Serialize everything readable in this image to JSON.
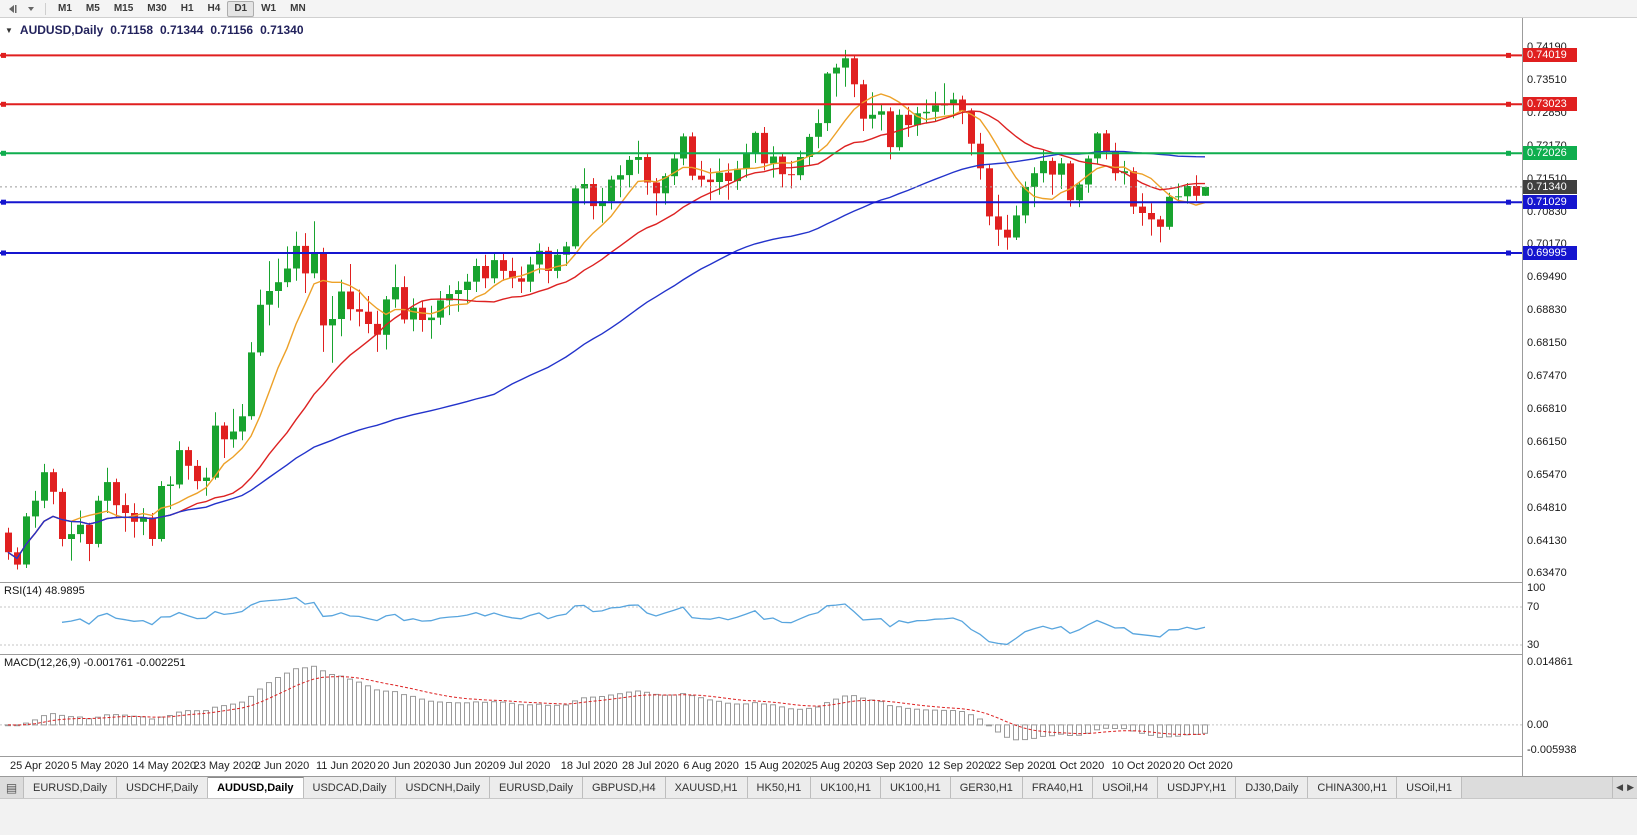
{
  "toolbar": {
    "timeframes": [
      "M1",
      "M5",
      "M15",
      "M30",
      "H1",
      "H4",
      "D1",
      "W1",
      "MN"
    ],
    "active_timeframe": "D1",
    "icons": [
      "chart-shift-icon",
      "dropdown-caret-icon"
    ]
  },
  "chart": {
    "title": "AUDUSD,Daily",
    "ohlc": {
      "open": "0.71158",
      "high": "0.71344",
      "low": "0.71156",
      "close": "0.71340"
    },
    "price_axis_labels": [
      "0.74190",
      "0.73510",
      "0.72850",
      "0.72170",
      "0.71510",
      "0.70830",
      "0.70170",
      "0.69490",
      "0.68830",
      "0.68150",
      "0.67470",
      "0.66810",
      "0.66150",
      "0.65470",
      "0.64810",
      "0.64130",
      "0.63470"
    ],
    "current_price": {
      "value": 0.7134,
      "label": "0.71340",
      "tag_bg": "#3f3f3f"
    },
    "hlines": [
      {
        "price": 0.74019,
        "label": "0.74019",
        "color": "#e01f1f"
      },
      {
        "price": 0.73023,
        "label": "0.73023",
        "color": "#e01f1f"
      },
      {
        "price": 0.72026,
        "label": "0.72026",
        "color": "#0fae4e"
      },
      {
        "price": 0.71029,
        "label": "0.71029",
        "color": "#1515cf"
      },
      {
        "price": 0.69995,
        "label": "0.69995",
        "color": "#1515cf"
      }
    ],
    "colors": {
      "bull": "#18a32f",
      "bear": "#e02020",
      "ma_fast": "#eda128",
      "ma_mid": "#dd2222",
      "ma_slow": "#2333cb",
      "rsi": "#58a5de",
      "macd_hist": "#9a9a9a",
      "macd_signal": "#dd2222",
      "level_dash": "#c4c4c4",
      "bid_line": "#9b9b9b"
    }
  },
  "chart_data": {
    "type": "candlestick",
    "symbol": "AUDUSD",
    "timeframe": "Daily",
    "ylim": [
      0.6347,
      0.7419
    ],
    "x_date_labels": [
      "25 Apr 2020",
      "5 May 2020",
      "14 May 2020",
      "23 May 2020",
      "2 Jun 2020",
      "11 Jun 2020",
      "20 Jun 2020",
      "30 Jun 2020",
      "9 Jul 2020",
      "18 Jul 2020",
      "28 Jul 2020",
      "6 Aug 2020",
      "15 Aug 2020",
      "25 Aug 2020",
      "3 Sep 2020",
      "12 Sep 2020",
      "22 Sep 2020",
      "1 Oct 2020",
      "10 Oct 2020",
      "20 Oct 2020"
    ],
    "moving_averages": [
      {
        "period": 8,
        "color_key": "ma_fast"
      },
      {
        "period": 20,
        "color_key": "ma_mid"
      },
      {
        "period": 55,
        "color_key": "ma_slow"
      }
    ],
    "candles": [
      [
        0.643,
        0.644,
        0.6375,
        0.639
      ],
      [
        0.639,
        0.64,
        0.6355,
        0.6365
      ],
      [
        0.6365,
        0.647,
        0.6358,
        0.6463
      ],
      [
        0.6463,
        0.6515,
        0.644,
        0.6495
      ],
      [
        0.6495,
        0.657,
        0.648,
        0.6553
      ],
      [
        0.6553,
        0.656,
        0.6488,
        0.6513
      ],
      [
        0.6513,
        0.652,
        0.6402,
        0.6417
      ],
      [
        0.6417,
        0.6453,
        0.6373,
        0.6427
      ],
      [
        0.6427,
        0.6475,
        0.641,
        0.6446
      ],
      [
        0.6446,
        0.645,
        0.6372,
        0.6407
      ],
      [
        0.6407,
        0.6505,
        0.64,
        0.6495
      ],
      [
        0.6495,
        0.6562,
        0.647,
        0.6533
      ],
      [
        0.6533,
        0.654,
        0.646,
        0.6486
      ],
      [
        0.6486,
        0.651,
        0.6432,
        0.647
      ],
      [
        0.647,
        0.649,
        0.642,
        0.6452
      ],
      [
        0.6452,
        0.648,
        0.6425,
        0.6461
      ],
      [
        0.6461,
        0.647,
        0.6403,
        0.6417
      ],
      [
        0.6417,
        0.6535,
        0.6412,
        0.6525
      ],
      [
        0.6525,
        0.6545,
        0.6478,
        0.6528
      ],
      [
        0.6528,
        0.6616,
        0.652,
        0.6598
      ],
      [
        0.6598,
        0.6605,
        0.6538,
        0.6566
      ],
      [
        0.6566,
        0.6578,
        0.6518,
        0.6535
      ],
      [
        0.6535,
        0.6562,
        0.6505,
        0.6542
      ],
      [
        0.6542,
        0.6675,
        0.6538,
        0.6648
      ],
      [
        0.6648,
        0.6655,
        0.6582,
        0.662
      ],
      [
        0.662,
        0.6682,
        0.6603,
        0.6636
      ],
      [
        0.6636,
        0.6692,
        0.6618,
        0.6667
      ],
      [
        0.6667,
        0.6818,
        0.666,
        0.6797
      ],
      [
        0.6797,
        0.6925,
        0.679,
        0.6894
      ],
      [
        0.6894,
        0.6983,
        0.6852,
        0.6922
      ],
      [
        0.6922,
        0.6988,
        0.6888,
        0.694
      ],
      [
        0.694,
        0.7013,
        0.693,
        0.6968
      ],
      [
        0.6968,
        0.7043,
        0.6943,
        0.7014
      ],
      [
        0.7014,
        0.704,
        0.6918,
        0.6958
      ],
      [
        0.6958,
        0.7064,
        0.6948,
        0.7
      ],
      [
        0.7,
        0.701,
        0.6798,
        0.6852
      ],
      [
        0.6852,
        0.6912,
        0.6776,
        0.6865
      ],
      [
        0.6865,
        0.6945,
        0.683,
        0.6921
      ],
      [
        0.6921,
        0.6977,
        0.6862,
        0.6885
      ],
      [
        0.6885,
        0.6925,
        0.685,
        0.688
      ],
      [
        0.688,
        0.6912,
        0.6836,
        0.6855
      ],
      [
        0.6855,
        0.6882,
        0.6798,
        0.6833
      ],
      [
        0.6833,
        0.6912,
        0.6803,
        0.6905
      ],
      [
        0.6905,
        0.6976,
        0.6888,
        0.693
      ],
      [
        0.693,
        0.6952,
        0.6856,
        0.6864
      ],
      [
        0.6864,
        0.6907,
        0.684,
        0.6888
      ],
      [
        0.6888,
        0.6902,
        0.6839,
        0.6863
      ],
      [
        0.6863,
        0.6892,
        0.6825,
        0.6868
      ],
      [
        0.6868,
        0.6922,
        0.6853,
        0.6903
      ],
      [
        0.6903,
        0.6934,
        0.6873,
        0.6916
      ],
      [
        0.6916,
        0.6942,
        0.688,
        0.6924
      ],
      [
        0.6924,
        0.6957,
        0.6898,
        0.6941
      ],
      [
        0.6941,
        0.6988,
        0.692,
        0.6973
      ],
      [
        0.6973,
        0.6996,
        0.6928,
        0.6948
      ],
      [
        0.6948,
        0.6998,
        0.6938,
        0.6985
      ],
      [
        0.6985,
        0.7001,
        0.6943,
        0.6963
      ],
      [
        0.6963,
        0.699,
        0.6928,
        0.6948
      ],
      [
        0.6948,
        0.6972,
        0.6918,
        0.6941
      ],
      [
        0.6941,
        0.6992,
        0.692,
        0.6976
      ],
      [
        0.6976,
        0.7019,
        0.6958,
        0.7004
      ],
      [
        0.7004,
        0.7012,
        0.6938,
        0.6963
      ],
      [
        0.6963,
        0.7007,
        0.6948,
        0.6996
      ],
      [
        0.6996,
        0.7022,
        0.6973,
        0.7013
      ],
      [
        0.7013,
        0.7137,
        0.7008,
        0.7131
      ],
      [
        0.7131,
        0.7172,
        0.7098,
        0.714
      ],
      [
        0.714,
        0.7152,
        0.7068,
        0.7095
      ],
      [
        0.7095,
        0.7132,
        0.7061,
        0.7105
      ],
      [
        0.7105,
        0.7157,
        0.7088,
        0.7149
      ],
      [
        0.7149,
        0.7178,
        0.7113,
        0.7158
      ],
      [
        0.7158,
        0.7197,
        0.7133,
        0.7189
      ],
      [
        0.7189,
        0.7228,
        0.7161,
        0.7195
      ],
      [
        0.7195,
        0.7202,
        0.7118,
        0.7143
      ],
      [
        0.7143,
        0.7152,
        0.7076,
        0.7121
      ],
      [
        0.7121,
        0.7162,
        0.7098,
        0.7156
      ],
      [
        0.7156,
        0.7202,
        0.7138,
        0.7192
      ],
      [
        0.7192,
        0.7243,
        0.7178,
        0.7237
      ],
      [
        0.7237,
        0.7245,
        0.7148,
        0.7157
      ],
      [
        0.7157,
        0.7187,
        0.7133,
        0.7149
      ],
      [
        0.7149,
        0.7172,
        0.7107,
        0.7144
      ],
      [
        0.7144,
        0.7192,
        0.7118,
        0.7163
      ],
      [
        0.7163,
        0.7182,
        0.7108,
        0.7146
      ],
      [
        0.7146,
        0.7187,
        0.7128,
        0.7171
      ],
      [
        0.7171,
        0.7222,
        0.7153,
        0.7204
      ],
      [
        0.7204,
        0.7247,
        0.7183,
        0.7244
      ],
      [
        0.7244,
        0.7256,
        0.7168,
        0.7182
      ],
      [
        0.7182,
        0.7217,
        0.7153,
        0.7196
      ],
      [
        0.7196,
        0.7202,
        0.7133,
        0.716
      ],
      [
        0.716,
        0.7187,
        0.7131,
        0.7158
      ],
      [
        0.7158,
        0.7208,
        0.7148,
        0.7195
      ],
      [
        0.7195,
        0.7242,
        0.7178,
        0.7236
      ],
      [
        0.7236,
        0.7292,
        0.7213,
        0.7264
      ],
      [
        0.7264,
        0.7368,
        0.7248,
        0.7365
      ],
      [
        0.7365,
        0.7385,
        0.7318,
        0.7377
      ],
      [
        0.7377,
        0.7413,
        0.7338,
        0.7396
      ],
      [
        0.7396,
        0.7403,
        0.7317,
        0.7343
      ],
      [
        0.7343,
        0.7352,
        0.7248,
        0.7273
      ],
      [
        0.7273,
        0.7327,
        0.7253,
        0.7281
      ],
      [
        0.7281,
        0.7302,
        0.7249,
        0.7288
      ],
      [
        0.7288,
        0.7296,
        0.719,
        0.7215
      ],
      [
        0.7215,
        0.7292,
        0.7208,
        0.7281
      ],
      [
        0.7281,
        0.7297,
        0.7236,
        0.726
      ],
      [
        0.726,
        0.7297,
        0.7238,
        0.7284
      ],
      [
        0.7284,
        0.7312,
        0.7263,
        0.7287
      ],
      [
        0.7287,
        0.7328,
        0.7268,
        0.73
      ],
      [
        0.73,
        0.7345,
        0.7281,
        0.7304
      ],
      [
        0.7304,
        0.7326,
        0.7274,
        0.7312
      ],
      [
        0.7312,
        0.732,
        0.7262,
        0.7289
      ],
      [
        0.7289,
        0.7294,
        0.7198,
        0.7222
      ],
      [
        0.7222,
        0.7244,
        0.7149,
        0.7172
      ],
      [
        0.7172,
        0.7179,
        0.7056,
        0.7074
      ],
      [
        0.7074,
        0.7118,
        0.7014,
        0.7047
      ],
      [
        0.7047,
        0.7077,
        0.7006,
        0.7031
      ],
      [
        0.7031,
        0.7096,
        0.7026,
        0.7076
      ],
      [
        0.7076,
        0.7145,
        0.706,
        0.7134
      ],
      [
        0.7134,
        0.7174,
        0.7093,
        0.7162
      ],
      [
        0.7162,
        0.7209,
        0.7143,
        0.7187
      ],
      [
        0.7187,
        0.7194,
        0.7118,
        0.7159
      ],
      [
        0.7159,
        0.7193,
        0.713,
        0.7182
      ],
      [
        0.7182,
        0.7187,
        0.7094,
        0.7107
      ],
      [
        0.7107,
        0.7145,
        0.7093,
        0.7139
      ],
      [
        0.7139,
        0.7198,
        0.7122,
        0.7192
      ],
      [
        0.7192,
        0.7246,
        0.7181,
        0.7243
      ],
      [
        0.7243,
        0.725,
        0.719,
        0.7206
      ],
      [
        0.7206,
        0.7224,
        0.7147,
        0.7162
      ],
      [
        0.7162,
        0.7187,
        0.7139,
        0.7166
      ],
      [
        0.7166,
        0.7174,
        0.7079,
        0.7094
      ],
      [
        0.7094,
        0.7121,
        0.7055,
        0.7081
      ],
      [
        0.7081,
        0.7101,
        0.7035,
        0.7068
      ],
      [
        0.7068,
        0.7075,
        0.7021,
        0.7053
      ],
      [
        0.7053,
        0.7122,
        0.7047,
        0.7114
      ],
      [
        0.7114,
        0.7141,
        0.7104,
        0.7115
      ],
      [
        0.7115,
        0.7142,
        0.71,
        0.7136
      ],
      [
        0.7136,
        0.7158,
        0.7106,
        0.7116
      ],
      [
        0.71158,
        0.71344,
        0.71156,
        0.7134
      ]
    ]
  },
  "rsi": {
    "label": "RSI(14) 48.9895",
    "period": 14,
    "upper_level": 70,
    "lower_level": 30,
    "axis_labels": [
      "100",
      "70",
      "30"
    ]
  },
  "macd": {
    "label": "MACD(12,26,9) -0.001761 -0.002251",
    "fast": 12,
    "slow": 26,
    "signal": 9,
    "axis_labels": [
      "0.014861",
      "0.00",
      "-0.005938"
    ],
    "max": 0.014861,
    "min": -0.005938
  },
  "tabs": {
    "items": [
      "EURUSD,Daily",
      "USDCHF,Daily",
      "AUDUSD,Daily",
      "USDCAD,Daily",
      "USDCNH,Daily",
      "EURUSD,Daily",
      "GBPUSD,H4",
      "XAUUSD,H1",
      "HK50,H1",
      "UK100,H1",
      "UK100,H1",
      "GER30,H1",
      "FRA40,H1",
      "USOil,H4",
      "USDJPY,H1",
      "DJ30,Daily",
      "CHINA300,H1",
      "USOil,H1"
    ],
    "active_index": 2
  }
}
